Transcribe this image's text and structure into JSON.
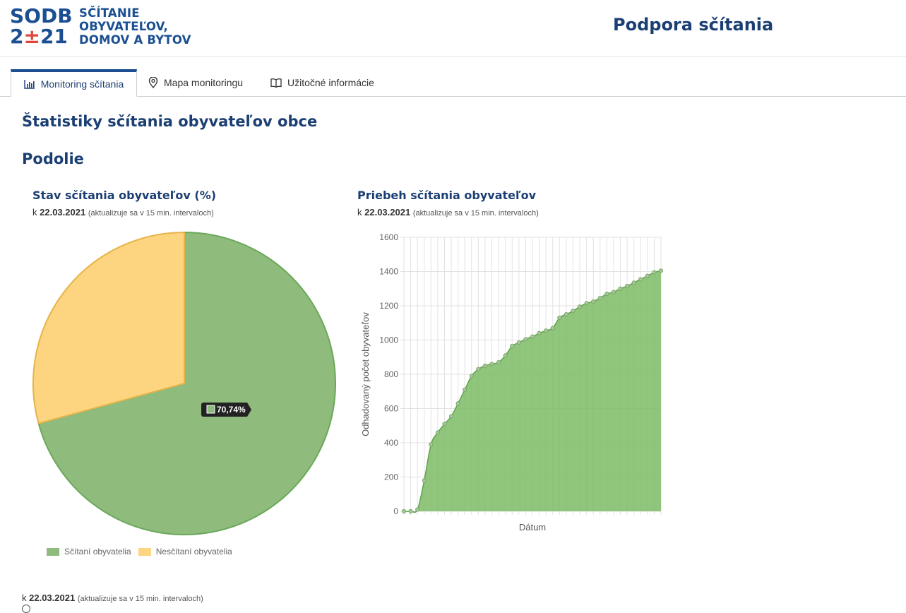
{
  "header": {
    "logo_line1": "SODB",
    "logo_line2_a": "2",
    "logo_line2_b": "21",
    "logo_text": [
      "SČÍTANIE",
      "OBYVATEĽOV,",
      "DOMOV A BYTOV"
    ],
    "title": "Podpora sčítania"
  },
  "tabs": [
    {
      "label": "Monitoring sčítania",
      "icon": "bar-chart-icon",
      "active": true
    },
    {
      "label": "Mapa monitoringu",
      "icon": "map-pin-icon",
      "active": false
    },
    {
      "label": "Užitočné informácie",
      "icon": "book-icon",
      "active": false
    }
  ],
  "page": {
    "title": "Štatistiky sčítania obyvateľov obce",
    "place": "Podolie"
  },
  "asof": {
    "prefix": "k",
    "date": "22.03.2021",
    "note": "(aktualizuje sa v 15 min. intervaloch)"
  },
  "pie_card": {
    "title": "Stav sčítania obyvateľov (%)"
  },
  "line_card": {
    "title": "Priebeh sčítania obyvateľov"
  },
  "colors": {
    "green": "#8fbc7d",
    "green_border": "#6aa85a",
    "yellow": "#fdd47f",
    "yellow_border": "#e6b44a",
    "navy": "#1b3f73"
  },
  "chart_data": [
    {
      "type": "pie",
      "title": "Stav sčítania obyvateľov (%)",
      "series": [
        {
          "name": "Sčítaní obyvatelia",
          "value": 70.74
        },
        {
          "name": "Nesčítaní obyvatelia",
          "value": 29.26
        }
      ],
      "tooltip": "70,74%",
      "legend": "bottom-left"
    },
    {
      "type": "area",
      "title": "Priebeh sčítania obyvateľov",
      "xlabel": "Dátum",
      "ylabel": "Odhadovaný počet obyvateľov",
      "ylim": [
        0,
        1600
      ],
      "yticks": [
        0,
        200,
        400,
        600,
        800,
        1000,
        1200,
        1400,
        1600
      ],
      "grid": true,
      "values": [
        0,
        0,
        10,
        180,
        390,
        460,
        510,
        555,
        630,
        710,
        790,
        830,
        850,
        860,
        870,
        910,
        965,
        985,
        1005,
        1020,
        1040,
        1055,
        1070,
        1130,
        1150,
        1170,
        1195,
        1215,
        1225,
        1245,
        1270,
        1280,
        1300,
        1315,
        1335,
        1355,
        1375,
        1395,
        1405
      ]
    }
  ]
}
